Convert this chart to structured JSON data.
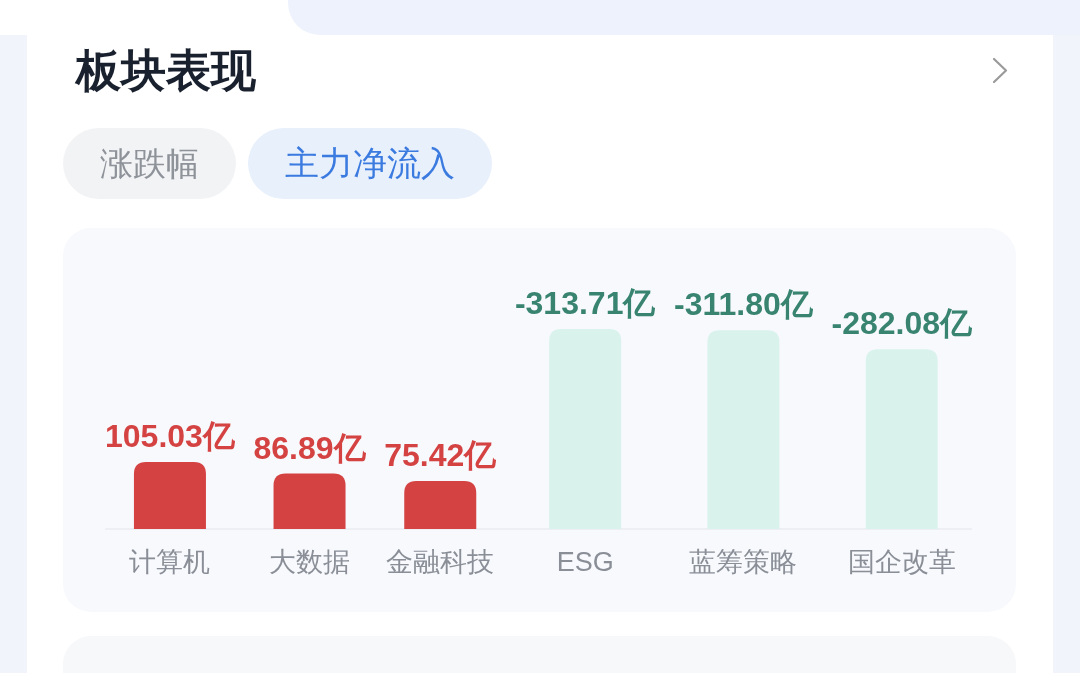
{
  "chart_data": {
    "type": "bar",
    "title": "板块表现",
    "subtitle": "主力净流入",
    "annotations": [
      "涨跌幅",
      {
        "text": "-313.71亿",
        "x": "ESG",
        "y": 313.71
      },
      {
        "text": "-311.80亿",
        "x": "蓝筹策略",
        "y": 311.8
      },
      {
        "text": "-282.08亿",
        "x": "国企改革",
        "y": 282.08
      }
    ],
    "categories": [
      "计算机",
      "大数据",
      "金融科技",
      "ESG",
      "蓝筹策略",
      "国企改革"
    ],
    "values": [
      105.03,
      86.89,
      75.42,
      313.71,
      311.8,
      282.08
    ],
    "value_labels": [
      "105.03亿",
      "86.89亿",
      "75.42亿",
      null,
      null,
      null
    ],
    "colors": [
      "#d44242",
      "#d44242",
      "#d44242",
      "#d9f3ec",
      "#d9f3ec",
      "#d9f3ec"
    ]
  }
}
